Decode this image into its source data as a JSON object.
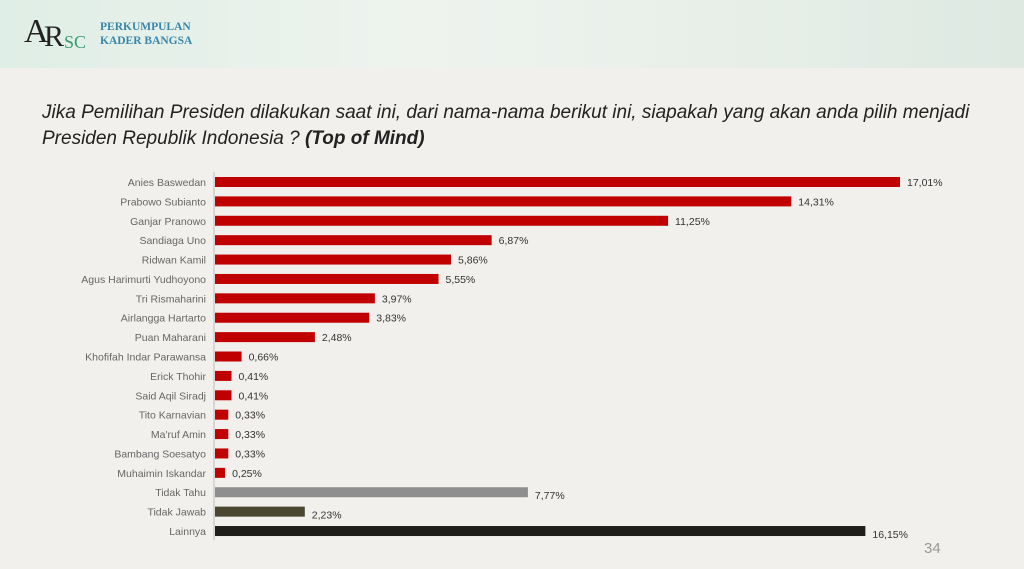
{
  "header": {
    "org_line1": "PERKUMPULAN",
    "org_line2": "KADER BANGSA",
    "logo_text": "ARSC"
  },
  "title": {
    "main": "Jika Pemilihan Presiden dilakukan saat ini, dari nama-nama berikut ini, siapakah yang akan anda pilih menjadi Presiden Republik Indonesia ? ",
    "emphasis": "(Top of Mind)"
  },
  "page_number": "34",
  "colors": {
    "candidate": "#c00000",
    "tidak_tahu": "#8e8e8e",
    "tidak_jawab": "#4a4630",
    "lainnya": "#1f1e1a"
  },
  "chart_data": {
    "type": "bar",
    "orientation": "horizontal",
    "title": "",
    "xlabel": "",
    "ylabel": "",
    "xlim": [
      0,
      17.01
    ],
    "categories": [
      "Anies Baswedan",
      "Prabowo Subianto",
      "Ganjar Pranowo",
      "Sandiaga Uno",
      "Ridwan Kamil",
      "Agus Harimurti Yudhoyono",
      "Tri Rismaharini",
      "Airlangga Hartarto",
      "Puan Maharani",
      "Khofifah Indar Parawansa",
      "Erick Thohir",
      "Said Aqil Siradj",
      "Tito Karnavian",
      "Ma'ruf Amin",
      "Bambang Soesatyo",
      "Muhaimin Iskandar",
      "Tidak Tahu",
      "Tidak Jawab",
      "Lainnya"
    ],
    "values": [
      17.01,
      14.31,
      11.25,
      6.87,
      5.86,
      5.55,
      3.97,
      3.83,
      2.48,
      0.66,
      0.41,
      0.41,
      0.33,
      0.33,
      0.33,
      0.25,
      7.77,
      2.23,
      16.15
    ],
    "labels": [
      "17,01%",
      "14,31%",
      "11,25%",
      "6,87%",
      "5,86%",
      "5,55%",
      "3,97%",
      "3,83%",
      "2,48%",
      "0,66%",
      "0,41%",
      "0,41%",
      "0,33%",
      "0,33%",
      "0,33%",
      "0,25%",
      "7,77%",
      "2,23%",
      "16,15%"
    ],
    "bar_colors": [
      "#c00000",
      "#c00000",
      "#c00000",
      "#c00000",
      "#c00000",
      "#c00000",
      "#c00000",
      "#c00000",
      "#c00000",
      "#c00000",
      "#c00000",
      "#c00000",
      "#c00000",
      "#c00000",
      "#c00000",
      "#c00000",
      "#8e8e8e",
      "#4a4630",
      "#1f1e1a"
    ]
  }
}
